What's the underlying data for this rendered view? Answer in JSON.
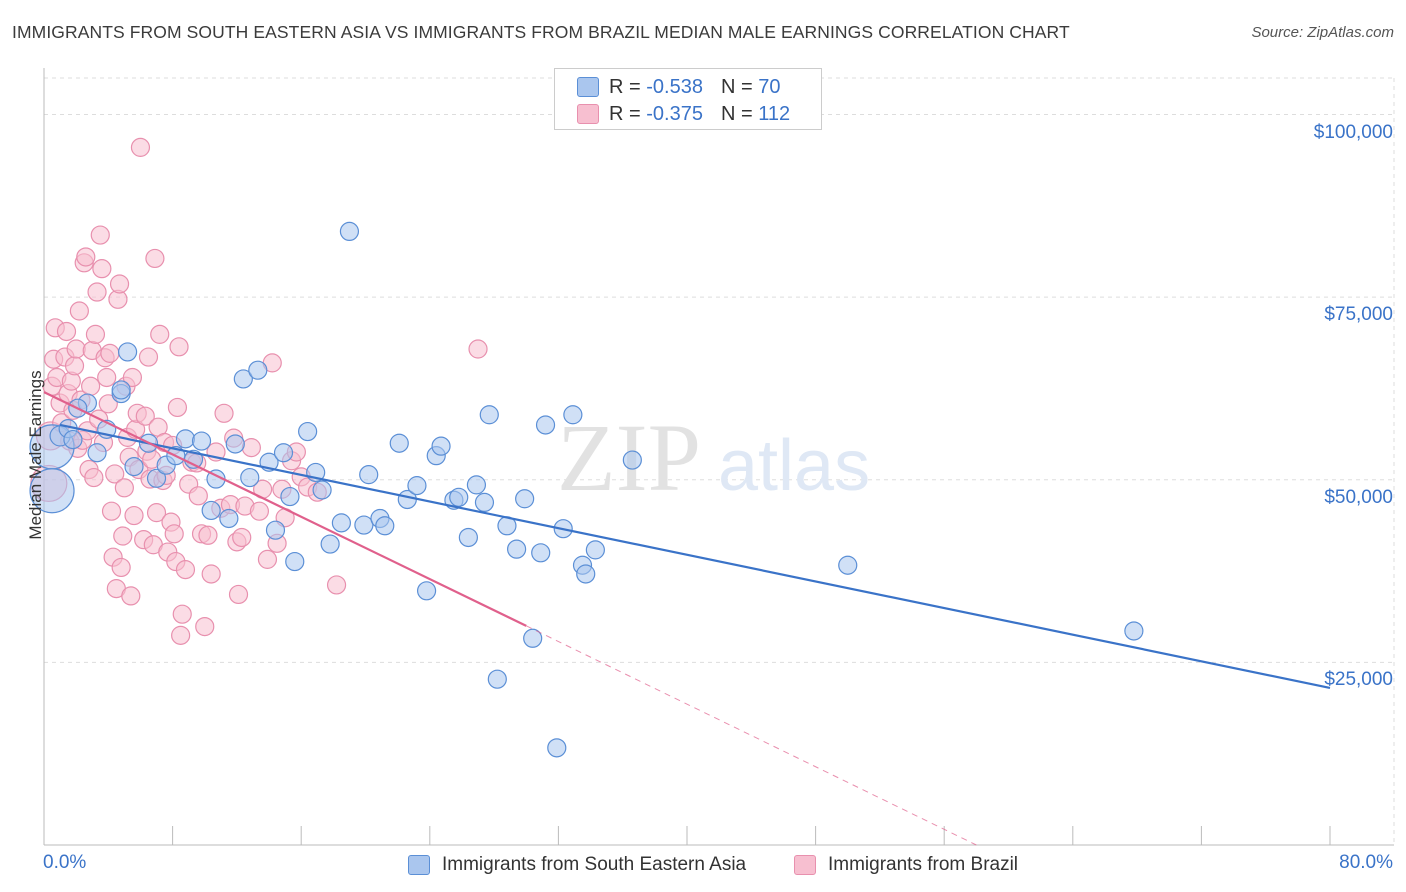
{
  "title": "IMMIGRANTS FROM SOUTH EASTERN ASIA VS IMMIGRANTS FROM BRAZIL MEDIAN MALE EARNINGS CORRELATION CHART",
  "source": "Source: ZipAtlas.com",
  "watermark": {
    "zip": "ZIP",
    "atlas": "atlas"
  },
  "colors": {
    "blue": "#3a73c8",
    "blue_fill": "#aac6ee",
    "blue_stroke": "#5b8fd6",
    "pink": "#e0608c",
    "pink_fill": "#f7bfd0",
    "pink_stroke": "#e890ae",
    "grid": "#dddddd"
  },
  "legend": {
    "rows": [
      {
        "r_label": "R =",
        "r_value": "-0.538",
        "n_label": "N =",
        "n_value": "70"
      },
      {
        "r_label": "R =",
        "r_value": "-0.375",
        "n_label": "N =",
        "n_value": "112"
      }
    ]
  },
  "chart_data": {
    "type": "scatter",
    "xlabel": "",
    "ylabel": "Median Male Earnings",
    "xlim": [
      0,
      80
    ],
    "ylim": [
      0,
      105000
    ],
    "x_tick_labels": [
      "0.0%",
      "80.0%"
    ],
    "y_ticks": [
      {
        "value": 100000,
        "label": "$100,000"
      },
      {
        "value": 75000,
        "label": "$75,000"
      },
      {
        "value": 50000,
        "label": "$50,000"
      },
      {
        "value": 25000,
        "label": "$25,000"
      }
    ],
    "grid": true,
    "series": [
      {
        "name": "Immigrants from South Eastern Asia",
        "color": "blue",
        "trend": {
          "x0": 1,
          "y0": 57500,
          "x1": 80,
          "y1": 21500,
          "dashed_to": null
        },
        "points": [
          [
            0.5,
            54500,
            22
          ],
          [
            0.5,
            48500,
            22
          ],
          [
            1.0,
            56000,
            10
          ],
          [
            1.5,
            57000,
            9
          ],
          [
            1.8,
            55500,
            9
          ],
          [
            2.7,
            60500,
            9
          ],
          [
            3.3,
            53700,
            9
          ],
          [
            5.2,
            67500,
            9
          ],
          [
            4.8,
            61800,
            9
          ],
          [
            4.8,
            62300,
            9
          ],
          [
            5.6,
            51800,
            9
          ],
          [
            6.5,
            55000,
            9
          ],
          [
            7.0,
            50200,
            9
          ],
          [
            7.6,
            52000,
            9
          ],
          [
            8.2,
            53300,
            9
          ],
          [
            8.8,
            55600,
            9
          ],
          [
            9.3,
            52800,
            9
          ],
          [
            9.8,
            55300,
            9
          ],
          [
            10.4,
            45800,
            9
          ],
          [
            10.7,
            50100,
            9
          ],
          [
            11.5,
            44700,
            9
          ],
          [
            11.9,
            54900,
            9
          ],
          [
            12.4,
            63800,
            9
          ],
          [
            12.8,
            50300,
            9
          ],
          [
            13.3,
            65000,
            9
          ],
          [
            14.0,
            52400,
            9
          ],
          [
            14.4,
            43100,
            9
          ],
          [
            14.9,
            53700,
            9
          ],
          [
            15.3,
            47700,
            9
          ],
          [
            15.6,
            38800,
            9
          ],
          [
            16.4,
            56600,
            9
          ],
          [
            16.9,
            51000,
            9
          ],
          [
            17.3,
            48600,
            9
          ],
          [
            17.8,
            41200,
            9
          ],
          [
            18.5,
            44100,
            9
          ],
          [
            19.0,
            84000,
            9
          ],
          [
            19.9,
            43800,
            9
          ],
          [
            20.2,
            50700,
            9
          ],
          [
            20.9,
            44700,
            9
          ],
          [
            21.2,
            43700,
            9
          ],
          [
            22.1,
            55000,
            9
          ],
          [
            22.6,
            47300,
            9
          ],
          [
            23.2,
            49200,
            9
          ],
          [
            23.8,
            34800,
            9
          ],
          [
            24.4,
            53300,
            9
          ],
          [
            24.7,
            54600,
            9
          ],
          [
            25.5,
            47200,
            9
          ],
          [
            25.8,
            47600,
            9
          ],
          [
            26.4,
            42100,
            9
          ],
          [
            26.9,
            49300,
            9
          ],
          [
            27.4,
            46900,
            9
          ],
          [
            27.7,
            58900,
            9
          ],
          [
            28.2,
            22700,
            9
          ],
          [
            28.8,
            43700,
            9
          ],
          [
            29.4,
            40500,
            9
          ],
          [
            29.9,
            47400,
            9
          ],
          [
            30.4,
            28300,
            9
          ],
          [
            30.9,
            40000,
            9
          ],
          [
            31.2,
            57500,
            9
          ],
          [
            31.9,
            13300,
            9
          ],
          [
            32.3,
            43300,
            9
          ],
          [
            32.9,
            58900,
            9
          ],
          [
            33.5,
            38300,
            9
          ],
          [
            33.7,
            37100,
            9
          ],
          [
            34.3,
            40400,
            9
          ],
          [
            36.6,
            52700,
            9
          ],
          [
            50.0,
            38300,
            9
          ],
          [
            67.8,
            29300,
            9
          ],
          [
            2.1,
            59800,
            9
          ],
          [
            3.9,
            56900,
            9
          ]
        ]
      },
      {
        "name": "Immigrants from Brazil",
        "color": "pink",
        "trend": {
          "x0": 0,
          "y0": 62000,
          "x1": 30,
          "y1": 30000,
          "dashed_to": [
            58,
            0
          ]
        },
        "points": [
          [
            0.3,
            49500,
            18
          ],
          [
            0.4,
            56000,
            14
          ],
          [
            0.5,
            62800,
            9
          ],
          [
            0.6,
            66500,
            9
          ],
          [
            0.7,
            70800,
            9
          ],
          [
            0.8,
            64000,
            9
          ],
          [
            1.0,
            60500,
            9
          ],
          [
            1.1,
            57800,
            9
          ],
          [
            1.3,
            66800,
            9
          ],
          [
            1.4,
            70300,
            9
          ],
          [
            1.5,
            61800,
            9
          ],
          [
            1.6,
            55300,
            9
          ],
          [
            1.7,
            63500,
            9
          ],
          [
            1.8,
            59500,
            9
          ],
          [
            1.9,
            65600,
            9
          ],
          [
            2.0,
            67900,
            9
          ],
          [
            2.1,
            54300,
            9
          ],
          [
            2.2,
            73100,
            9
          ],
          [
            2.3,
            60900,
            9
          ],
          [
            2.4,
            55400,
            9
          ],
          [
            2.5,
            79700,
            9
          ],
          [
            2.6,
            80500,
            9
          ],
          [
            2.7,
            56700,
            9
          ],
          [
            2.8,
            51400,
            9
          ],
          [
            2.9,
            62800,
            9
          ],
          [
            3.0,
            67700,
            9
          ],
          [
            3.1,
            50300,
            9
          ],
          [
            3.2,
            69900,
            9
          ],
          [
            3.3,
            75700,
            9
          ],
          [
            3.4,
            58300,
            9
          ],
          [
            3.5,
            83500,
            9
          ],
          [
            3.6,
            78900,
            9
          ],
          [
            3.7,
            55100,
            9
          ],
          [
            3.8,
            66700,
            9
          ],
          [
            3.9,
            64000,
            9
          ],
          [
            4.0,
            60400,
            9
          ],
          [
            4.1,
            67300,
            9
          ],
          [
            4.2,
            45700,
            9
          ],
          [
            4.3,
            39400,
            9
          ],
          [
            4.4,
            50800,
            9
          ],
          [
            4.5,
            35100,
            9
          ],
          [
            4.6,
            74700,
            9
          ],
          [
            4.7,
            76800,
            9
          ],
          [
            4.8,
            38000,
            9
          ],
          [
            4.9,
            42300,
            9
          ],
          [
            5.0,
            48900,
            9
          ],
          [
            5.1,
            62800,
            9
          ],
          [
            5.2,
            55800,
            9
          ],
          [
            5.3,
            53100,
            9
          ],
          [
            5.4,
            34100,
            9
          ],
          [
            5.5,
            64000,
            9
          ],
          [
            5.6,
            45100,
            9
          ],
          [
            5.7,
            56900,
            9
          ],
          [
            5.8,
            59100,
            9
          ],
          [
            5.9,
            51400,
            9
          ],
          [
            6.0,
            95500,
            9
          ],
          [
            6.2,
            41800,
            9
          ],
          [
            6.3,
            58700,
            9
          ],
          [
            6.4,
            53900,
            9
          ],
          [
            6.5,
            66800,
            9
          ],
          [
            6.6,
            50100,
            9
          ],
          [
            6.8,
            41100,
            9
          ],
          [
            6.9,
            80300,
            9
          ],
          [
            7.0,
            45500,
            9
          ],
          [
            7.1,
            57200,
            9
          ],
          [
            7.2,
            69900,
            9
          ],
          [
            7.4,
            49900,
            9
          ],
          [
            7.5,
            55100,
            9
          ],
          [
            7.6,
            50600,
            9
          ],
          [
            7.7,
            40100,
            9
          ],
          [
            7.9,
            44200,
            9
          ],
          [
            8.0,
            54700,
            9
          ],
          [
            8.1,
            42600,
            9
          ],
          [
            8.2,
            38800,
            9
          ],
          [
            8.3,
            59900,
            9
          ],
          [
            8.4,
            68200,
            9
          ],
          [
            8.5,
            28700,
            9
          ],
          [
            8.6,
            31600,
            9
          ],
          [
            8.8,
            37700,
            9
          ],
          [
            9.0,
            49400,
            9
          ],
          [
            9.2,
            52400,
            9
          ],
          [
            9.5,
            52300,
            9
          ],
          [
            9.8,
            42600,
            9
          ],
          [
            10.0,
            29900,
            9
          ],
          [
            10.2,
            42400,
            9
          ],
          [
            10.4,
            37100,
            9
          ],
          [
            10.7,
            53800,
            9
          ],
          [
            11.0,
            46100,
            9
          ],
          [
            11.2,
            59100,
            9
          ],
          [
            11.6,
            46600,
            9
          ],
          [
            11.8,
            55700,
            9
          ],
          [
            12.0,
            41500,
            9
          ],
          [
            12.1,
            34300,
            9
          ],
          [
            12.3,
            42100,
            9
          ],
          [
            12.5,
            46400,
            9
          ],
          [
            12.9,
            54400,
            9
          ],
          [
            13.4,
            45700,
            9
          ],
          [
            13.6,
            48700,
            9
          ],
          [
            13.9,
            39100,
            9
          ],
          [
            14.2,
            66000,
            9
          ],
          [
            14.5,
            41300,
            9
          ],
          [
            14.8,
            48700,
            9
          ],
          [
            15.0,
            44800,
            9
          ],
          [
            15.4,
            52600,
            9
          ],
          [
            15.7,
            53800,
            9
          ],
          [
            16.0,
            50400,
            9
          ],
          [
            16.4,
            49000,
            9
          ],
          [
            17.0,
            48300,
            9
          ],
          [
            18.2,
            35600,
            9
          ],
          [
            27.0,
            67900,
            9
          ],
          [
            6.7,
            52800,
            9
          ],
          [
            9.6,
            47800,
            9
          ]
        ]
      }
    ]
  },
  "bottom_legend": [
    {
      "label": "Immigrants from South Eastern Asia"
    },
    {
      "label": "Immigrants from Brazil"
    }
  ]
}
